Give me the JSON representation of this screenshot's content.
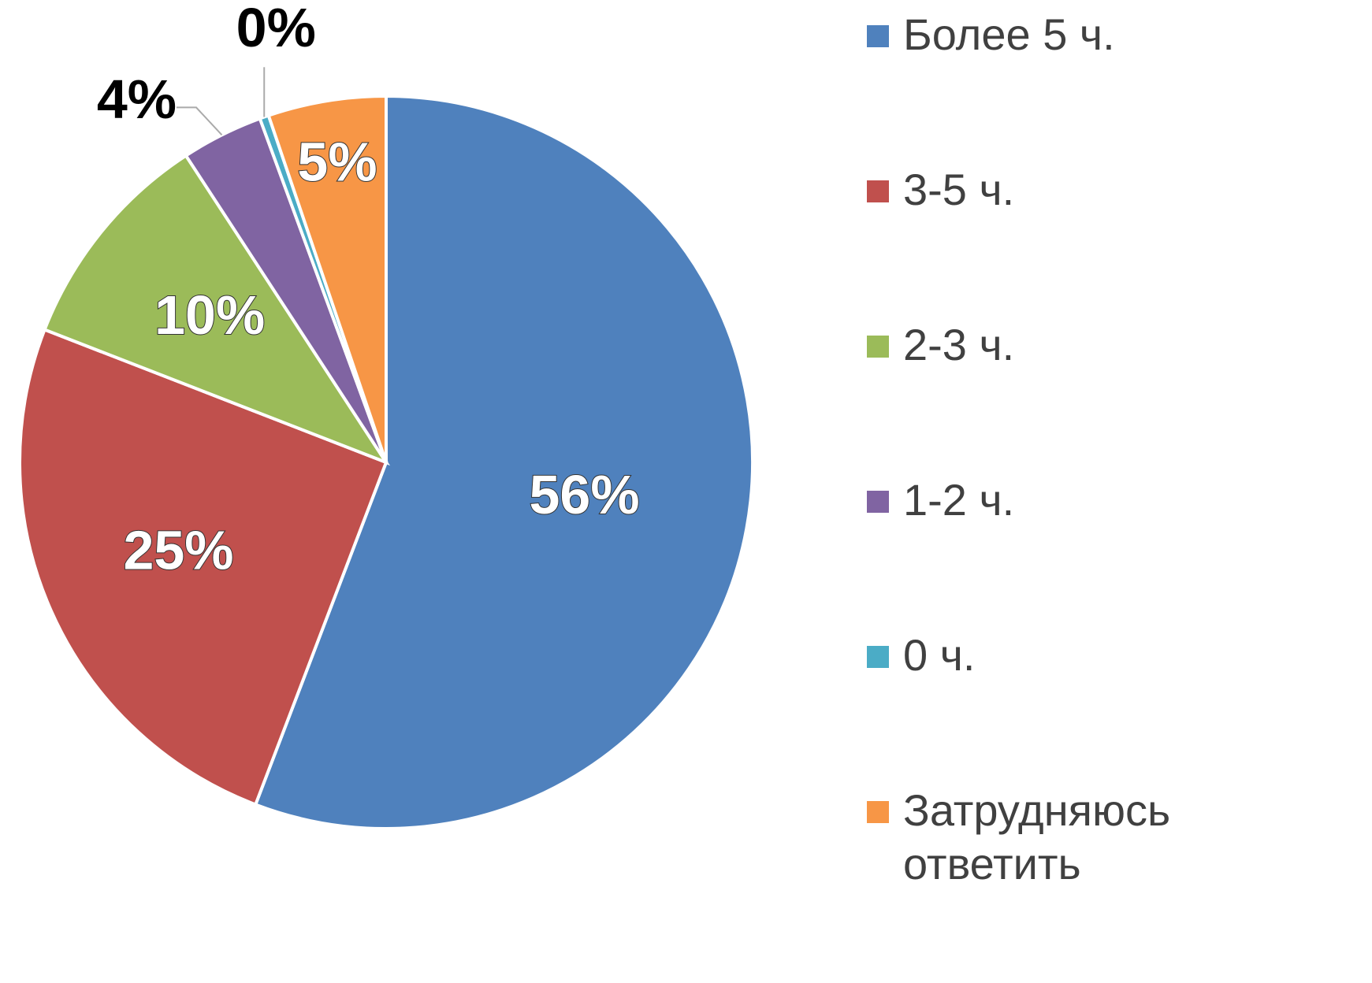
{
  "chart_data": {
    "type": "pie",
    "categories": [
      "Более 5 ч.",
      "3-5 ч.",
      "2-3 ч.",
      "1-2 ч.",
      "0 ч.",
      "Затрудняюсь ответить"
    ],
    "values": [
      55.8,
      25.1,
      9.9,
      3.6,
      0.4,
      5.2
    ],
    "value_labels": [
      "56%",
      "25%",
      "10%",
      "4%",
      "0%",
      "5%"
    ],
    "colors": [
      "#4f81bd",
      "#c0504d",
      "#9bbb59",
      "#8064a2",
      "#4bacc6",
      "#f79646"
    ],
    "legend": "right"
  }
}
